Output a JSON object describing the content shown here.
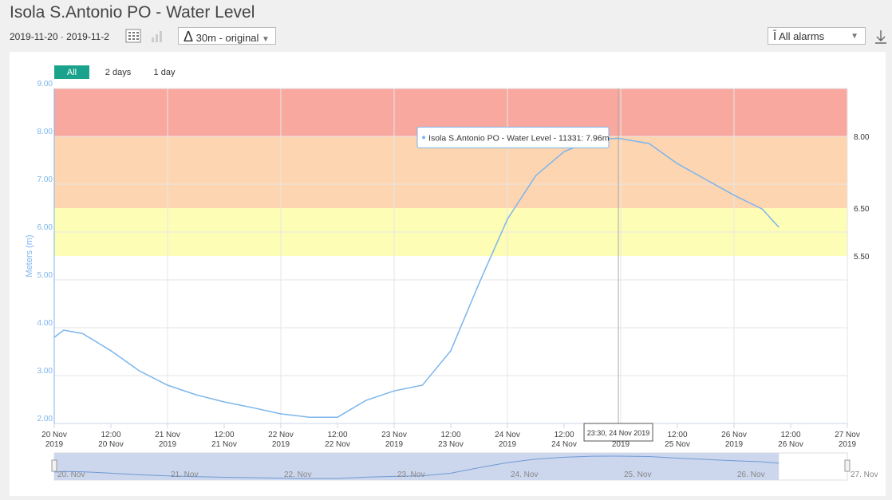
{
  "header": {
    "title": "Isola S.Antonio PO - Water Level",
    "date_range": "2019-11-20 · 2019-11-2",
    "interval": "30m - original",
    "alarms": "All alarms"
  },
  "range_buttons": [
    "All",
    "2 days",
    "1 day"
  ],
  "chart_data": {
    "type": "line",
    "ylabel": "Meters (m)",
    "series": [
      {
        "name": "Isola S.Antonio PO - Water Level - 11331",
        "color": "#7cb5ec",
        "x": [
          "2019-11-20T00:00",
          "2019-11-20T02:00",
          "2019-11-20T06:00",
          "2019-11-20T12:00",
          "2019-11-20T18:00",
          "2019-11-21T00:00",
          "2019-11-21T06:00",
          "2019-11-21T12:00",
          "2019-11-21T18:00",
          "2019-11-22T00:00",
          "2019-11-22T06:00",
          "2019-11-22T12:00",
          "2019-11-22T18:00",
          "2019-11-23T00:00",
          "2019-11-23T06:00",
          "2019-11-23T12:00",
          "2019-11-23T18:00",
          "2019-11-24T00:00",
          "2019-11-24T06:00",
          "2019-11-24T12:00",
          "2019-11-24T18:00",
          "2019-11-24T23:30",
          "2019-11-25T06:00",
          "2019-11-25T12:00",
          "2019-11-25T18:00",
          "2019-11-26T00:00",
          "2019-11-26T06:00",
          "2019-11-26T09:30"
        ],
        "values": [
          3.8,
          3.95,
          3.88,
          3.52,
          3.1,
          2.8,
          2.6,
          2.45,
          2.33,
          2.2,
          2.13,
          2.13,
          2.48,
          2.68,
          2.8,
          3.52,
          4.93,
          6.27,
          7.18,
          7.68,
          7.93,
          7.96,
          7.85,
          7.43,
          7.1,
          6.77,
          6.48,
          6.1
        ]
      }
    ],
    "bands": [
      {
        "from": 8,
        "to": 9,
        "color": "#f9a89f"
      },
      {
        "from": 6.5,
        "to": 8,
        "color": "#fdd5b1"
      },
      {
        "from": 5.5,
        "to": 6.5,
        "color": "#fefdb5"
      }
    ],
    "thresholds": [
      {
        "value": 8,
        "label": "8.00"
      },
      {
        "value": 6.5,
        "label": "6.50"
      },
      {
        "value": 5.5,
        "label": "5.50"
      }
    ],
    "ylim": [
      2,
      9
    ],
    "yticks": [
      {
        "value": 2,
        "label": "2.00"
      },
      {
        "value": 3,
        "label": "3.00"
      },
      {
        "value": 4,
        "label": "4.00"
      },
      {
        "value": 5,
        "label": "5.00"
      },
      {
        "value": 6,
        "label": "6.00"
      },
      {
        "value": 7,
        "label": "7.00"
      },
      {
        "value": 8,
        "label": "8.00"
      },
      {
        "value": 9,
        "label": "9.00"
      }
    ],
    "xlim": [
      "2019-11-20T00:00",
      "2019-11-27T00:00"
    ],
    "xticks": [
      {
        "value": "2019-11-20T00:00",
        "label": "20 Nov",
        "sublabel": "2019"
      },
      {
        "value": "2019-11-20T12:00",
        "label": "12:00",
        "sublabel": "20 Nov"
      },
      {
        "value": "2019-11-21T00:00",
        "label": "21 Nov",
        "sublabel": "2019"
      },
      {
        "value": "2019-11-21T12:00",
        "label": "12:00",
        "sublabel": "21 Nov"
      },
      {
        "value": "2019-11-22T00:00",
        "label": "22 Nov",
        "sublabel": "2019"
      },
      {
        "value": "2019-11-22T12:00",
        "label": "12:00",
        "sublabel": "22 Nov"
      },
      {
        "value": "2019-11-23T00:00",
        "label": "23 Nov",
        "sublabel": "2019"
      },
      {
        "value": "2019-11-23T12:00",
        "label": "12:00",
        "sublabel": "23 Nov"
      },
      {
        "value": "2019-11-24T00:00",
        "label": "24 Nov",
        "sublabel": "2019"
      },
      {
        "value": "2019-11-24T12:00",
        "label": "12:00",
        "sublabel": "24 Nov"
      },
      {
        "value": "2019-11-25T00:00",
        "label": "25 Nov",
        "sublabel": "2019"
      },
      {
        "value": "2019-11-25T12:00",
        "label": "12:00",
        "sublabel": "25 Nov"
      },
      {
        "value": "2019-11-26T00:00",
        "label": "26 Nov",
        "sublabel": "2019"
      },
      {
        "value": "2019-11-26T12:00",
        "label": "12:00",
        "sublabel": "26 Nov"
      },
      {
        "value": "2019-11-27T00:00",
        "label": "27 Nov",
        "sublabel": "2019"
      }
    ],
    "tooltip": {
      "x": "2019-11-24T23:30",
      "text": "Isola S.Antonio PO - Water Level - 11331: 7.96m",
      "x_label": "23:30, 24 Nov 2019"
    },
    "navigator_labels": [
      {
        "value": "2019-11-20T00:00",
        "label": "20. Nov"
      },
      {
        "value": "2019-11-21T00:00",
        "label": "21. Nov"
      },
      {
        "value": "2019-11-22T00:00",
        "label": "22. Nov"
      },
      {
        "value": "2019-11-23T00:00",
        "label": "23. Nov"
      },
      {
        "value": "2019-11-24T00:00",
        "label": "24. Nov"
      },
      {
        "value": "2019-11-25T00:00",
        "label": "25. Nov"
      },
      {
        "value": "2019-11-26T00:00",
        "label": "26. Nov"
      },
      {
        "value": "2019-11-27T00:00",
        "label": "27. Nov"
      }
    ]
  }
}
